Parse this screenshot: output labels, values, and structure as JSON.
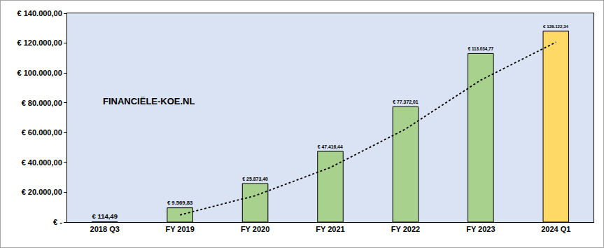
{
  "chart_data": {
    "type": "bar",
    "categories": [
      "2018 Q3",
      "FY 2019",
      "FY 2020",
      "FY 2021",
      "FY 2022",
      "FY 2023",
      "2024 Q1"
    ],
    "values": [
      114.49,
      9569.83,
      25873.4,
      47416.44,
      77372.01,
      113034.77,
      128122.34
    ],
    "value_labels": [
      "€ 114,49",
      "€ 9.569,83",
      "€ 25.873,40",
      "€ 47.416,44",
      "€ 77.372,01",
      "€ 113.034,77",
      "€ 128.122,34"
    ],
    "colors": [
      "#a9d18e",
      "#a9d18e",
      "#a9d18e",
      "#a9d18e",
      "#a9d18e",
      "#a9d18e",
      "#ffd966"
    ],
    "data_labels": true,
    "ylim": [
      0,
      140000
    ],
    "yticks": [
      {
        "value": 0,
        "label": "€ -"
      },
      {
        "value": 20000,
        "label": "€ 20.000,00"
      },
      {
        "value": 40000,
        "label": "€ 40.000,00"
      },
      {
        "value": 60000,
        "label": "€ 60.000,00"
      },
      {
        "value": 80000,
        "label": "€ 80.000,00"
      },
      {
        "value": 100000,
        "label": "€ 100.000,00"
      },
      {
        "value": 120000,
        "label": "€ 120.000,00"
      },
      {
        "value": 140000,
        "label": "€ 140.000,00"
      }
    ],
    "grid": false,
    "trendline": {
      "values": [
        null,
        4800,
        17700,
        36600,
        62400,
        95200,
        120600
      ],
      "line_style": "dotted"
    },
    "logo_text": "FINANCIËLE-KOE.NL"
  }
}
